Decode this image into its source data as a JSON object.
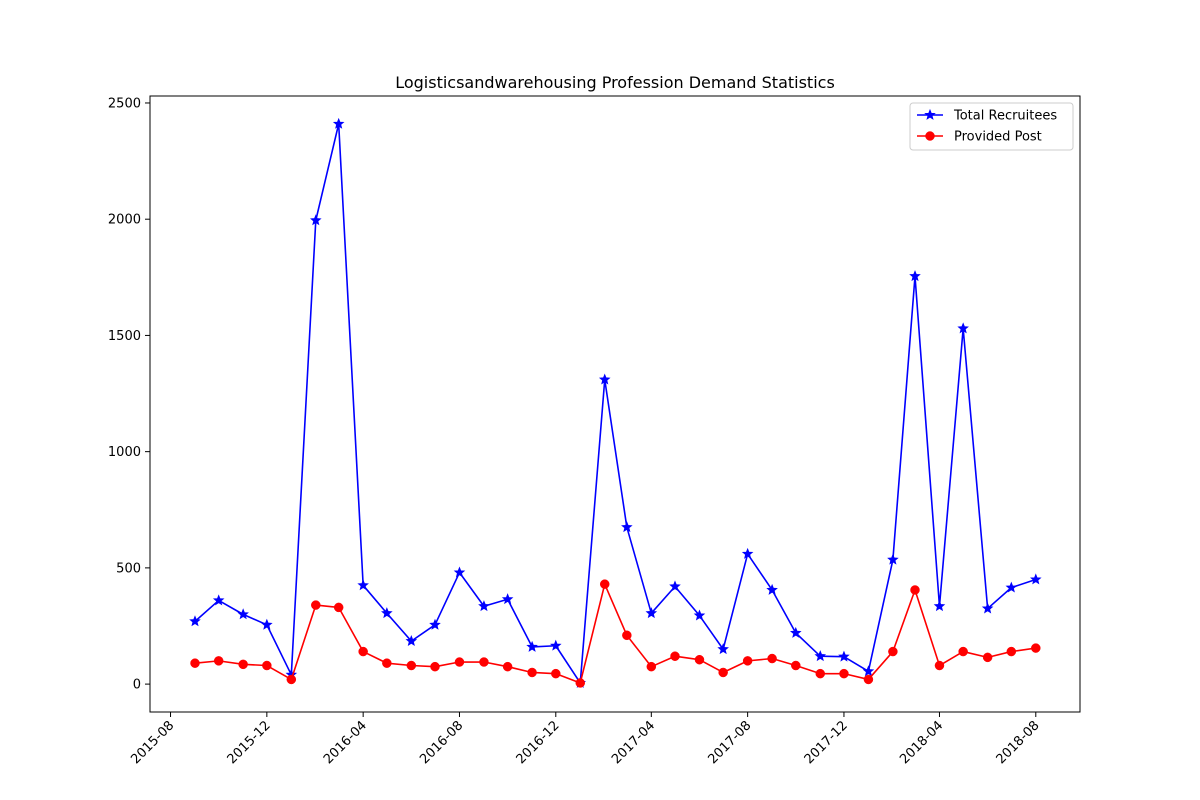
{
  "chart_data": {
    "type": "line",
    "title": "Logisticsandwarehousing Profession Demand Statistics",
    "xlabel": "",
    "ylabel": "",
    "x": [
      "2015-09",
      "2015-10",
      "2015-11",
      "2015-12",
      "2016-01",
      "2016-02",
      "2016-03",
      "2016-04",
      "2016-05",
      "2016-06",
      "2016-07",
      "2016-08",
      "2016-09",
      "2016-10",
      "2016-11",
      "2016-12",
      "2017-01",
      "2017-02",
      "2017-03",
      "2017-04",
      "2017-05",
      "2017-06",
      "2017-07",
      "2017-08",
      "2017-09",
      "2017-10",
      "2017-11",
      "2017-12",
      "2018-01",
      "2018-02",
      "2018-03",
      "2018-04",
      "2018-05",
      "2018-06",
      "2018-07",
      "2018-08"
    ],
    "x_ticks": [
      "2015-08",
      "2015-12",
      "2016-04",
      "2016-08",
      "2016-12",
      "2017-04",
      "2017-08",
      "2017-12",
      "2018-04",
      "2018-08"
    ],
    "y_ticks": [
      0,
      500,
      1000,
      1500,
      2000,
      2500
    ],
    "ylim": [
      -120,
      2530
    ],
    "xlim": [
      "2015-07-06",
      "2018-09-26"
    ],
    "grid": false,
    "legend_position": "top-right",
    "series": [
      {
        "name": "Total Recruitees",
        "color": "#0000ff",
        "marker": "star",
        "values": [
          270,
          360,
          300,
          255,
          40,
          1995,
          2410,
          425,
          305,
          185,
          255,
          480,
          335,
          365,
          160,
          165,
          5,
          1310,
          675,
          305,
          420,
          295,
          150,
          560,
          405,
          220,
          120,
          118,
          55,
          535,
          1755,
          335,
          1530,
          325,
          415,
          450
        ]
      },
      {
        "name": "Provided Post",
        "color": "#ff0000",
        "marker": "circle",
        "values": [
          90,
          100,
          85,
          80,
          20,
          340,
          330,
          140,
          90,
          80,
          75,
          95,
          95,
          75,
          50,
          45,
          5,
          430,
          210,
          75,
          120,
          105,
          50,
          100,
          110,
          80,
          45,
          45,
          20,
          140,
          405,
          80,
          140,
          115,
          140,
          155
        ]
      }
    ]
  }
}
